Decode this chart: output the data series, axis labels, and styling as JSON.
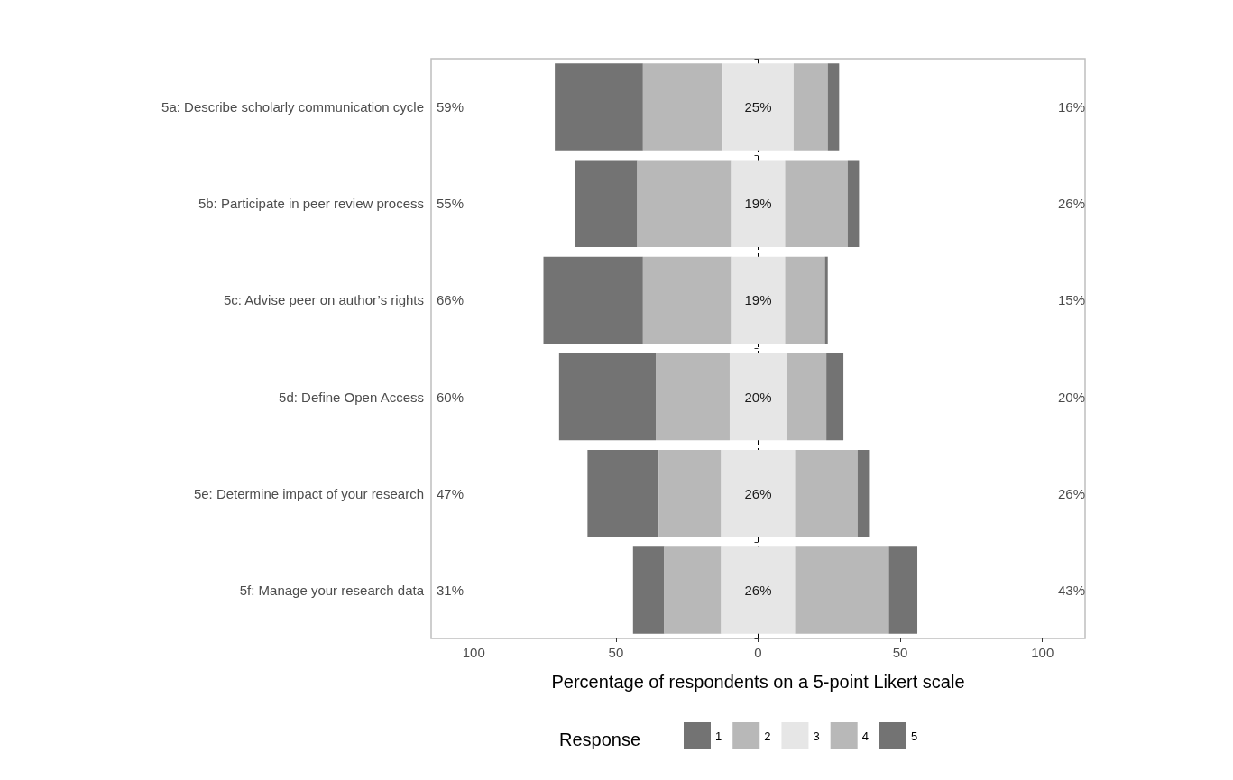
{
  "chart_data": {
    "type": "bar",
    "orientation": "horizontal",
    "xlabel": "Percentage of respondents on a 5-point Likert scale",
    "legend_title": "Response",
    "legend": "bottom",
    "grid": false,
    "categories": [
      "5a: Describe scholarly communication cycle",
      "5b: Participate in peer review process",
      "5c: Advise peer on author’s rights",
      "5d: Define Open Access",
      "5e: Determine impact of your research",
      "5f: Manage your research data"
    ],
    "xlim": [
      -115,
      115
    ],
    "xticks": [
      {
        "value": -100,
        "label": "100"
      },
      {
        "value": -50,
        "label": "50"
      },
      0,
      50,
      100
    ],
    "series": [
      {
        "name": "1",
        "color": "#737373",
        "values": [
          31,
          22,
          35,
          34,
          25,
          11
        ],
        "base": [
          -71.5,
          -64.5,
          -75.5,
          -70,
          -60,
          -44
        ]
      },
      {
        "name": "2",
        "color": "#b8b8b8",
        "values": [
          28,
          33,
          31,
          26,
          22,
          20
        ],
        "base": [
          -40.5,
          -42.5,
          -40.5,
          -36,
          -35,
          -33
        ]
      },
      {
        "name": "3",
        "color": "#e6e6e6",
        "values": [
          25,
          19,
          19,
          20,
          26,
          26
        ],
        "base": [
          -12.5,
          -9.5,
          -9.5,
          -10,
          -13,
          -13
        ],
        "value_labels": [
          "25%",
          "19%",
          "19%",
          "20%",
          "26%",
          "26%"
        ]
      },
      {
        "name": "4",
        "color": "#b8b8b8",
        "values": [
          12,
          22,
          14,
          14,
          22,
          33
        ],
        "base": [
          12.5,
          9.5,
          9.5,
          10,
          13,
          13
        ]
      },
      {
        "name": "5",
        "color": "#737373",
        "values": [
          4,
          4,
          1,
          6,
          4,
          10
        ],
        "base": [
          24.5,
          31.5,
          23.5,
          24,
          35,
          46
        ]
      }
    ],
    "ref_lines": [
      {
        "axis": "x",
        "value": 0,
        "color": "#000000",
        "line_style": "dashed"
      }
    ],
    "annotations": [
      "59%",
      "16%",
      "55%",
      "26%",
      "66%",
      "15%",
      "60%",
      "20%",
      "47%",
      "26%",
      "31%",
      "43%"
    ]
  }
}
